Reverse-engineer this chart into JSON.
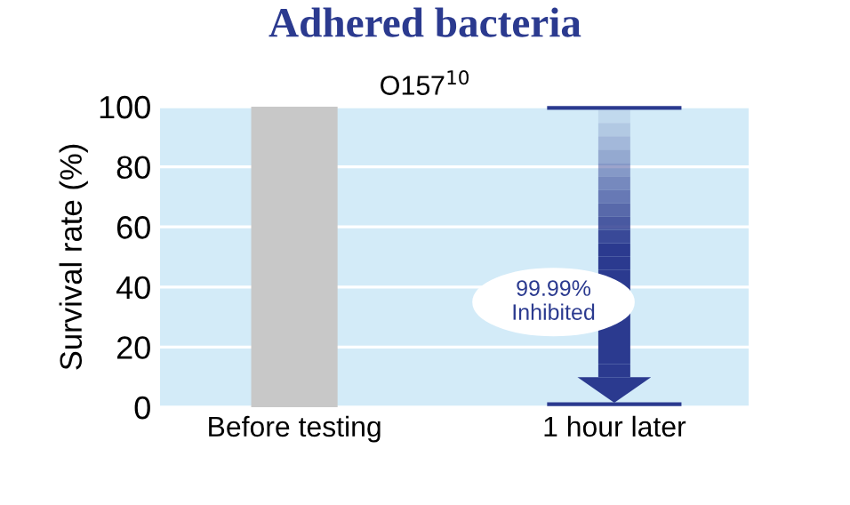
{
  "chart_data": {
    "type": "bar",
    "title": "Adhered bacteria",
    "subtitle": "O157$^{10}$",
    "ylabel": "Survival rate (%)",
    "categories": [
      "Before testing",
      "1 hour later"
    ],
    "series": [
      {
        "color": "#c8c8c8",
        "values": [
          100,
          0
        ]
      }
    ],
    "ylim": [
      0,
      100
    ],
    "yticks": [
      0,
      20,
      40,
      60,
      80,
      100
    ],
    "grid": "y",
    "annotations": [
      {
        "text": "99.99%\nInhibited",
        "x": "1 hour later",
        "y": 35
      }
    ]
  }
}
